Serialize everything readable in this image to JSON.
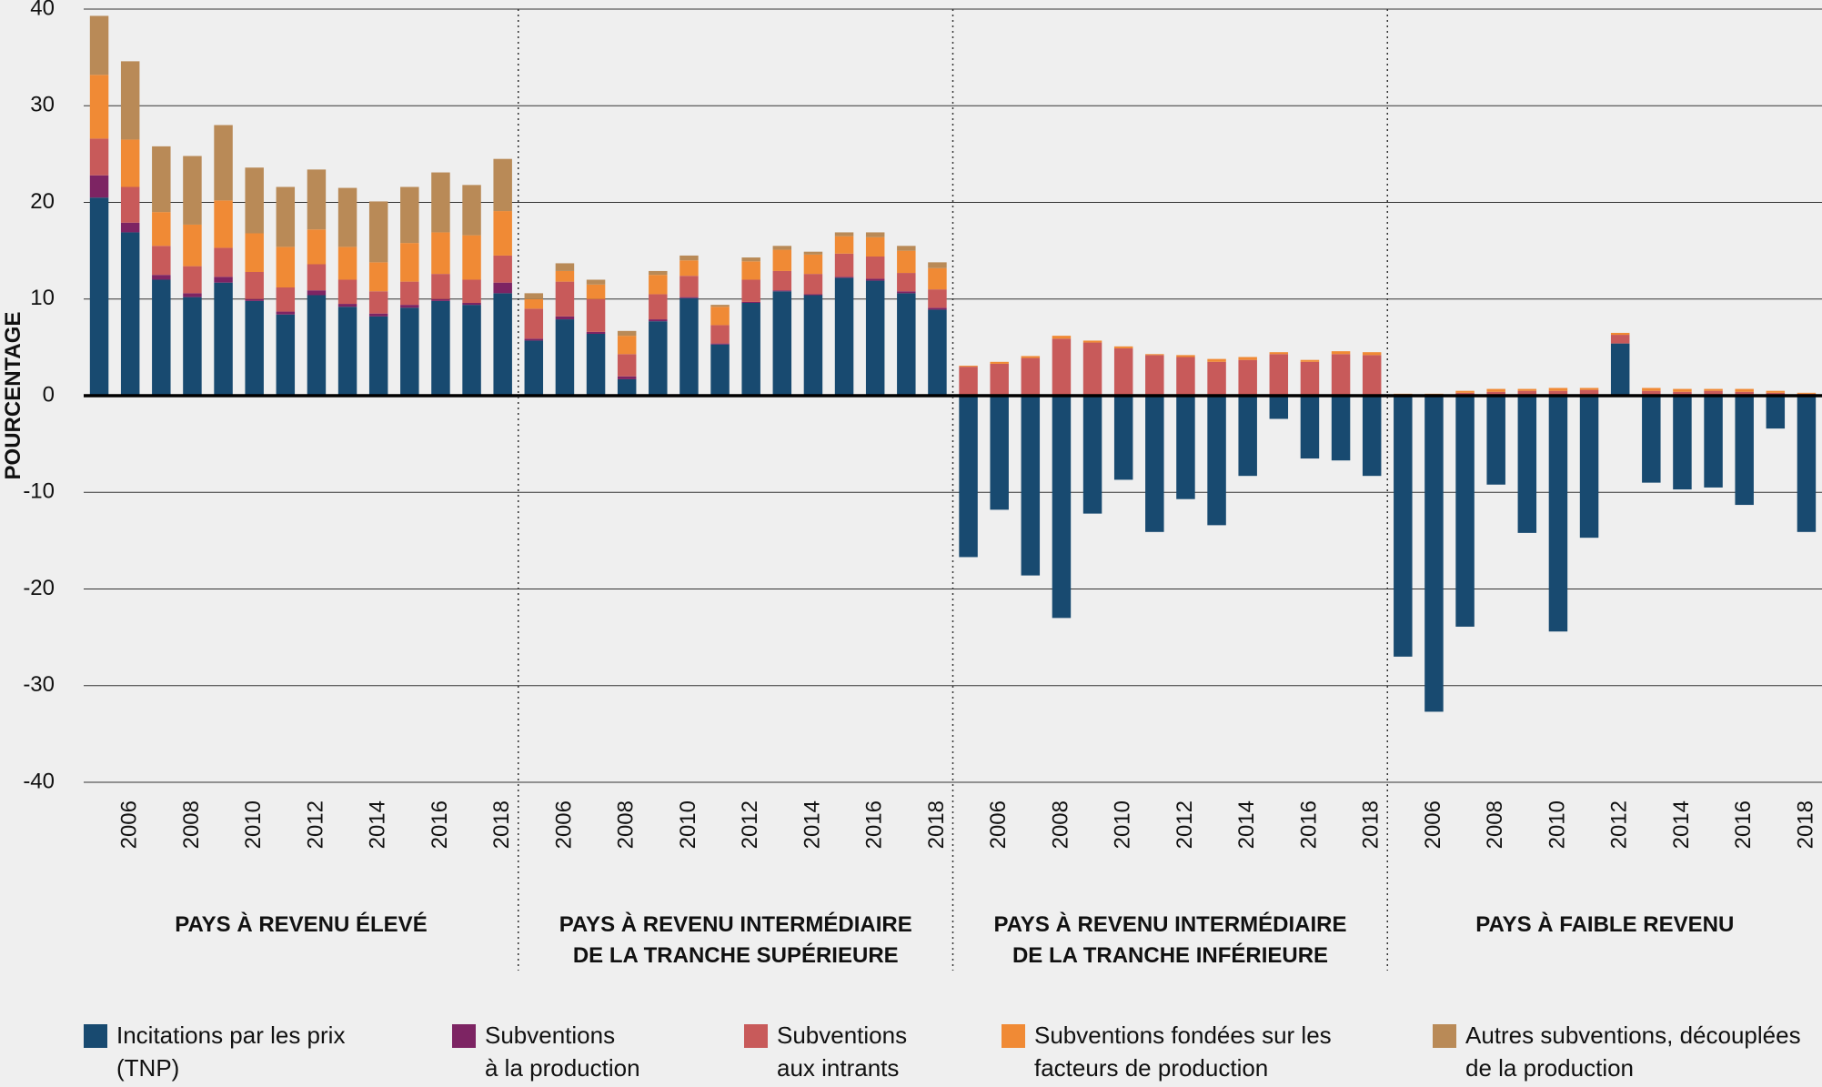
{
  "chart_data": {
    "type": "bar",
    "stacked": true,
    "y_label": "POURCENTAGE",
    "groups": [
      "PAYS À REVENU ÉLEVÉ",
      "PAYS À REVENU INTERMÉDIAIRE\nDE LA TRANCHE SUPÉRIEURE",
      "PAYS À REVENU INTERMÉDIAIRE\nDE LA TRANCHE INFÉRIEURE",
      "PAYS À FAIBLE REVENU"
    ],
    "categories": [
      null,
      "2006",
      null,
      "2008",
      null,
      "2010",
      null,
      "2012",
      null,
      "2014",
      null,
      "2016",
      null,
      "2018",
      null,
      "2006",
      null,
      "2008",
      null,
      "2010",
      null,
      "2012",
      null,
      "2014",
      null,
      "2016",
      null,
      "2018",
      null,
      "2006",
      null,
      "2008",
      null,
      "2010",
      null,
      "2012",
      null,
      "2014",
      null,
      "2016",
      null,
      "2018",
      null,
      "2006",
      null,
      "2008",
      null,
      "2010",
      null,
      "2012",
      null,
      "2014",
      null,
      "2016",
      null,
      "2018"
    ],
    "series": [
      {
        "name": "Incitations par les prix\n(TNP)",
        "color": "#184a70",
        "values": [
          20.5,
          16.9,
          12,
          10.2,
          11.7,
          9.8,
          8.4,
          10.4,
          9.2,
          8.2,
          9.1,
          9.8,
          9.4,
          10.6,
          5.7,
          7.9,
          6.4,
          1.7,
          7.7,
          10.1,
          5.3,
          9.6,
          10.8,
          10.4,
          12.2,
          11.9,
          10.6,
          8.9,
          -16.7,
          -11.8,
          -18.6,
          -23,
          -12.2,
          -8.7,
          -14.1,
          -10.7,
          -13.4,
          -8.3,
          -2.4,
          -6.5,
          -6.7,
          -8.3,
          -27,
          -32.7,
          -23.9,
          -9.2,
          -14.2,
          -24.4,
          -14.7,
          5.4,
          -9,
          -9.7,
          -9.5,
          -11.3,
          -3.4,
          -14.1
        ]
      },
      {
        "name": "Subventions\nà la production",
        "color": "#7d2463",
        "values": [
          2.3,
          1.0,
          0.5,
          0.4,
          0.6,
          0.2,
          0.3,
          0.5,
          0.3,
          0.3,
          0.3,
          0.2,
          0.2,
          1.1,
          0.2,
          0.3,
          0.2,
          0.3,
          0.2,
          0.1,
          0.1,
          0.1,
          0.1,
          0.1,
          0.1,
          0.2,
          0.2,
          0.2,
          0.1,
          0.1,
          0.1,
          0.1,
          0.1,
          0.1,
          0.1,
          0.1,
          0.1,
          0.1,
          0.1,
          0.1,
          0.1,
          0.1,
          0,
          0,
          0,
          0,
          0,
          0,
          0,
          0,
          0,
          0,
          0,
          0,
          0,
          0
        ]
      },
      {
        "name": "Subventions\naux intrants",
        "color": "#c85a5a",
        "values": [
          3.8,
          3.7,
          3.0,
          2.8,
          3.0,
          2.8,
          2.5,
          2.7,
          2.5,
          2.3,
          2.4,
          2.6,
          2.4,
          2.8,
          3.1,
          3.6,
          3.4,
          2.3,
          2.6,
          2.2,
          1.9,
          2.3,
          2.0,
          2.1,
          2.4,
          2.3,
          1.9,
          1.9,
          2.9,
          3.2,
          3.8,
          5.8,
          5.4,
          4.8,
          4.1,
          3.9,
          3.4,
          3.6,
          4.2,
          3.4,
          4.2,
          4.1,
          0.1,
          0.1,
          0.3,
          0.4,
          0.5,
          0.5,
          0.6,
          0.9,
          0.5,
          0.4,
          0.5,
          0.4,
          0.3,
          0.2
        ]
      },
      {
        "name": "Subventions fondées sur les\nfacteurs de production",
        "color": "#f08a35",
        "values": [
          6.6,
          4.9,
          3.5,
          4.3,
          4.9,
          4.0,
          4.2,
          3.6,
          3.4,
          3.0,
          4.0,
          4.3,
          4.6,
          4.6,
          1.0,
          1.1,
          1.5,
          1.9,
          2.0,
          1.6,
          1.9,
          1.9,
          2.2,
          2.0,
          1.8,
          2.0,
          2.3,
          2.2,
          0.1,
          0.2,
          0.2,
          0.3,
          0.2,
          0.2,
          0.1,
          0.2,
          0.3,
          0.3,
          0.2,
          0.2,
          0.3,
          0.3,
          0.1,
          0.1,
          0.2,
          0.3,
          0.2,
          0.3,
          0.2,
          0.2,
          0.3,
          0.3,
          0.2,
          0.3,
          0.2,
          0.1
        ]
      },
      {
        "name": "Autres subventions, découplées\nde la production",
        "color": "#b98a57",
        "values": [
          6.1,
          8.1,
          6.8,
          7.1,
          7.8,
          6.8,
          6.2,
          6.2,
          6.1,
          6.3,
          5.8,
          6.2,
          5.2,
          5.4,
          0.6,
          0.8,
          0.5,
          0.5,
          0.4,
          0.5,
          0.2,
          0.4,
          0.4,
          0.3,
          0.4,
          0.5,
          0.5,
          0.6,
          0,
          0,
          0,
          0,
          0,
          0,
          0,
          0,
          0,
          0,
          0,
          0,
          0,
          0,
          0,
          0,
          0,
          0,
          0,
          0,
          0,
          0,
          0,
          0,
          0,
          0,
          0,
          0
        ]
      }
    ],
    "ylim": [
      -40,
      40
    ],
    "yticks": [
      -40,
      -30,
      -20,
      -10,
      0,
      10,
      20,
      30,
      40
    ],
    "grid": true
  }
}
